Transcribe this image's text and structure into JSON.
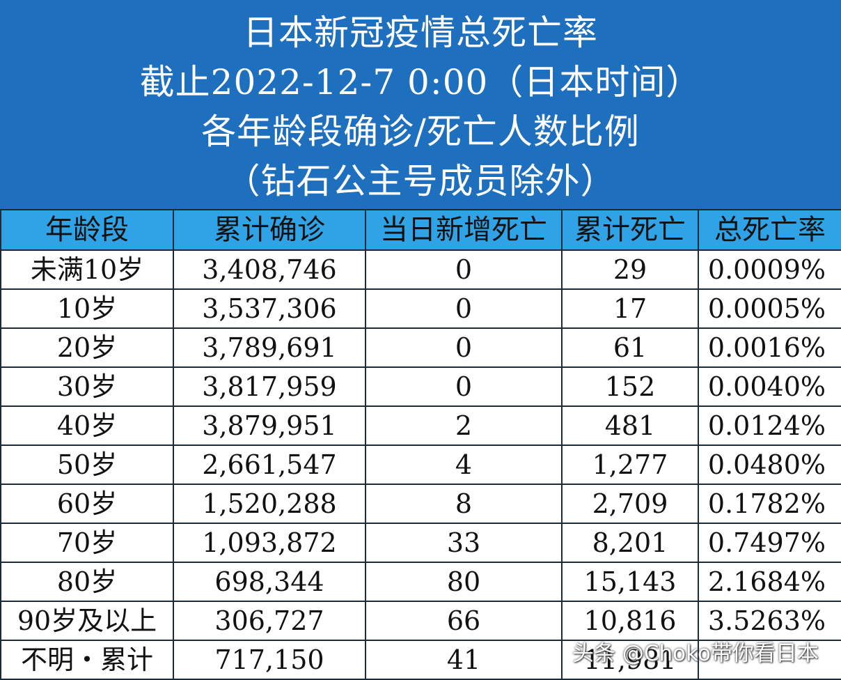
{
  "title": {
    "line1": "日本新冠疫情总死亡率",
    "line2": "截止2022-12-7 0:00（日本时间）",
    "line3": "各年龄段确诊/死亡人数比例",
    "line4": "（钻石公主号成员除外）"
  },
  "table": {
    "headers": [
      "年龄段",
      "累计确诊",
      "当日新增死亡",
      "累计死亡",
      "总死亡率"
    ],
    "rows": [
      [
        "未满10岁",
        "3,408,746",
        "0",
        "29",
        "0.0009%"
      ],
      [
        "10岁",
        "3,537,306",
        "0",
        "17",
        "0.0005%"
      ],
      [
        "20岁",
        "3,789,691",
        "0",
        "61",
        "0.0016%"
      ],
      [
        "30岁",
        "3,817,959",
        "0",
        "152",
        "0.0040%"
      ],
      [
        "40岁",
        "3,879,951",
        "2",
        "481",
        "0.0124%"
      ],
      [
        "50岁",
        "2,661,547",
        "4",
        "1,277",
        "0.0480%"
      ],
      [
        "60岁",
        "1,520,288",
        "8",
        "2,709",
        "0.1782%"
      ],
      [
        "70岁",
        "1,093,872",
        "33",
        "8,201",
        "0.7497%"
      ],
      [
        "80岁",
        "698,344",
        "80",
        "15,143",
        "2.1684%"
      ],
      [
        "90岁及以上",
        "306,727",
        "66",
        "10,816",
        "3.5263%"
      ],
      [
        "不明・累计",
        "717,150",
        "41",
        "11,981",
        ""
      ]
    ]
  },
  "watermark": "头条 @Choko带你看日本",
  "colors": {
    "title_bg": "#1f6fbf",
    "header_bg": "#2fa3e6"
  }
}
